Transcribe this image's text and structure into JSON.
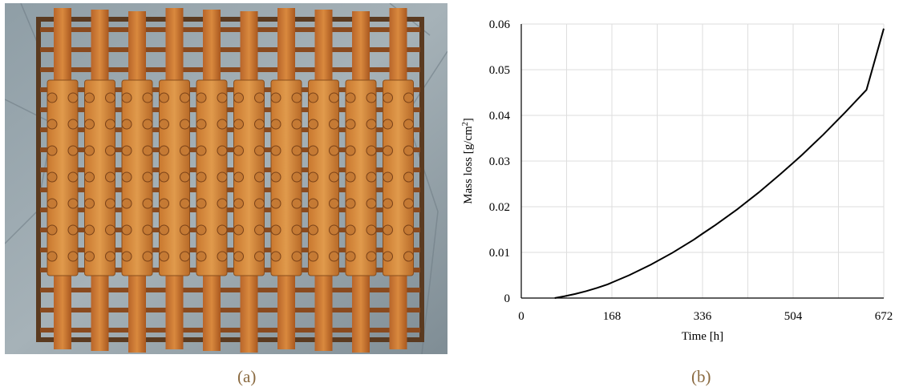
{
  "panel_a": {
    "label": "(a)"
  },
  "panel_b": {
    "label": "(b)"
  },
  "chart_data": {
    "type": "line",
    "xlabel": "Time [h]",
    "ylabel_base": "Mass loss [g/cm",
    "ylabel_sup": "2",
    "ylabel_end": "]",
    "xlim": [
      0,
      672
    ],
    "ylim": [
      0,
      0.06
    ],
    "xticks": [
      0,
      168,
      336,
      504,
      672
    ],
    "yticks": [
      0,
      0.01,
      0.02,
      0.03,
      0.04,
      0.05,
      0.06
    ],
    "ytick_labels": [
      "0",
      "0.01",
      "0.02",
      "0.03",
      "0.04",
      "0.05",
      "0.06"
    ],
    "x_minor_gridlines": [
      84,
      252,
      420,
      588
    ],
    "grid": true,
    "line_color": "#000000",
    "series": [
      {
        "x": [
          62,
          80,
          100,
          120,
          140,
          160,
          168,
          200,
          240,
          280,
          320,
          336,
          360,
          400,
          440,
          480,
          504,
          520,
          560,
          600,
          640,
          672
        ],
        "y": [
          0,
          0.0004,
          0.0009,
          0.0015,
          0.0022,
          0.003,
          0.0034,
          0.005,
          0.0073,
          0.0099,
          0.0128,
          0.0141,
          0.016,
          0.0194,
          0.0231,
          0.0271,
          0.0296,
          0.0313,
          0.0358,
          0.0406,
          0.0456,
          0.059
        ]
      }
    ]
  }
}
